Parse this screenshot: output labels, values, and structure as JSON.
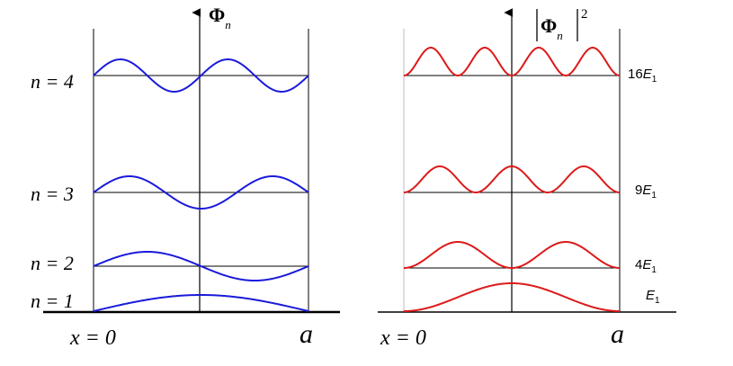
{
  "left_panel": {
    "axis_label": "Φ",
    "axis_subscript": "n",
    "level_labels": [
      "n = 4",
      "n = 3",
      "n = 2",
      "n = 1"
    ],
    "origin_label": "x = 0",
    "end_label": "a",
    "curve_color": "#1a1adb"
  },
  "right_panel": {
    "axis_label": "Φ",
    "axis_subscript": "n",
    "axis_exponent": "2",
    "energy_labels": [
      {
        "coef": "16",
        "sym": "E",
        "sub": "1"
      },
      {
        "coef": "9",
        "sym": "E",
        "sub": "1"
      },
      {
        "coef": "4",
        "sym": "E",
        "sub": "1"
      },
      {
        "coef": "",
        "sym": "E",
        "sub": "1"
      }
    ],
    "origin_label": "x = 0",
    "end_label": "a",
    "curve_color": "#dd1a1a"
  }
}
